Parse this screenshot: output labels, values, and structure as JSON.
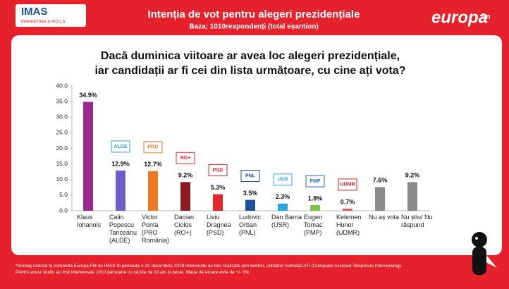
{
  "header": {
    "logo_left": "IMAS",
    "logo_left_sub": "MARKETING & POLLS",
    "title": "Intenția de vot pentru alegeri prezidențiale",
    "subtitle": "Baza: 1010respondenți (total eșantion)",
    "logo_right": "europa",
    "logo_right_sub": "fm"
  },
  "chart_data": {
    "type": "bar",
    "title": "Dacă duminica viitoare ar avea loc alegeri prezidențiale,\niar candidații ar fi cei din lista următoare, cu cine ați vota?",
    "categories": [
      "Klaus\nIohannis",
      "Calin\nPopescu\nTariceanu\n(ALDE)",
      "Victor\nPonta\n(PRO\nRomânia)",
      "Dacian\nCiolos\n(RO+)",
      "Liviu\nDragnea\n(PSD)",
      "Ludovic\nOrban\n(PNL)",
      "Dan Barna\n(USR)",
      "Eugen\nTomac\n(PMP)",
      "Kelemen\nHunor\n(UDMR)",
      "Nu aș vota",
      "Nu știu/ Nu\nrăspund"
    ],
    "values": [
      34.9,
      12.9,
      12.7,
      9.2,
      5.3,
      3.5,
      2.3,
      1.8,
      0.7,
      7.6,
      9.2
    ],
    "value_labels": [
      "34.9%",
      "12.9%",
      "12.7%",
      "9.2%",
      "5.3%",
      "3.5%",
      "2.3%",
      "1.8%",
      "0.7%",
      "7.6%",
      "9.2%"
    ],
    "colors": [
      "#9b2a8e",
      "#6c5fc7",
      "#ec7a22",
      "#8e1b1f",
      "#e3262d",
      "#1f4f9d",
      "#2ca6e0",
      "#7fc244",
      "#e35b5b",
      "#8a8a8a",
      "#8a8a8a"
    ],
    "logos": [
      null,
      "ALDE",
      "PRO",
      "RO+",
      "PSD",
      "PNL",
      "USR",
      "PMP",
      "UDMR",
      null,
      null
    ],
    "logo_colors": [
      null,
      "#2aa3de",
      "#ec7a22",
      "#e3262d",
      "#e3262d",
      "#1f4f9d",
      "#2ca6e0",
      "#2a6bb5",
      "#d0202a",
      null,
      null
    ],
    "ylim": [
      0,
      40
    ],
    "yticks": [
      {
        "value": 0,
        "label": "0.0"
      },
      {
        "value": 5,
        "label": "5.0"
      },
      {
        "value": 10,
        "label": "10.0"
      },
      {
        "value": 15,
        "label": "15.0"
      },
      {
        "value": 20,
        "label": "20.0"
      },
      {
        "value": 25,
        "label": "25.0"
      },
      {
        "value": 30,
        "label": "30.0"
      },
      {
        "value": 35,
        "label": "35.0"
      },
      {
        "value": 40,
        "label": "40.0"
      }
    ],
    "grid": false
  },
  "footnote": [
    "*Sondaj realizat la comanda Europa FM de IMAS în perioada 4-20 decembrie 2018.Interviurile au fost realizate prin telefon, utilizând metodaCATI (Computer Assisted Telephone Interviewing).",
    "Pentru acest studiu au fost intervievate 1010 persoane cu vârste de 18 ani și peste. Marja de eroare este de +/- 3%."
  ]
}
